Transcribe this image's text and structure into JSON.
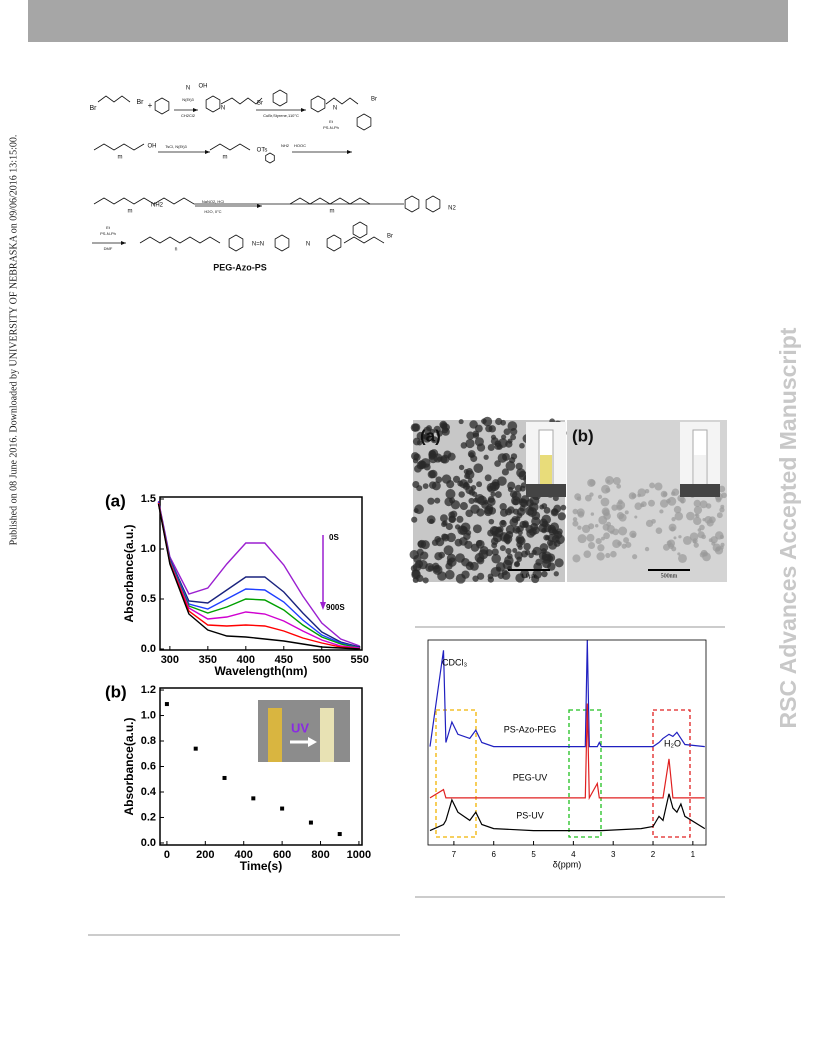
{
  "header": {
    "sidebar_left": "Published on 08 June 2016. Downloaded by UNIVERSITY OF NEBRASKA on 09/06/2016 13:15:00.",
    "sidebar_right": "RSC Advances Accepted Manuscript"
  },
  "scheme": {
    "labels": [
      "Br",
      "Br",
      "+",
      "N",
      "OH",
      "N(Et)3",
      "CH2Cl2",
      "N",
      "Br",
      "CuBr,Styrene,110°C",
      "N",
      "Br",
      "Et",
      "PS-N-Ph",
      "OH",
      "m",
      "TsCl, N(Et)3",
      "OTs",
      "m",
      "HOOC",
      "NH2",
      "NH2",
      "m",
      "NaNO2, HCl",
      "H2O, 0°C",
      "N2",
      "m",
      "Et",
      "PS-N-Ph",
      "DMF",
      "N=N",
      "N",
      "Br",
      "n",
      "PEG-Azo-PS"
    ]
  },
  "tem": {
    "panels": [
      "(a)",
      "(b)"
    ],
    "scale_bars": [
      "1.0μm",
      "500nm"
    ]
  },
  "chart_data": [
    {
      "type": "line",
      "panel": "(a)",
      "x_label": "Wavelength(nm)",
      "y_label": "Absorbance(a.u.)",
      "annotations": [
        "0S",
        "900S"
      ],
      "x": [
        285,
        300,
        325,
        350,
        375,
        400,
        425,
        450,
        475,
        500,
        525,
        550
      ],
      "series": [
        {
          "color": "#9b1fd0",
          "values": [
            1.48,
            0.92,
            0.55,
            0.61,
            0.85,
            1.06,
            1.06,
            0.84,
            0.53,
            0.26,
            0.1,
            0.03
          ]
        },
        {
          "color": "#1a237e",
          "values": [
            1.47,
            0.9,
            0.48,
            0.46,
            0.59,
            0.72,
            0.72,
            0.57,
            0.36,
            0.17,
            0.07,
            0.02
          ]
        },
        {
          "color": "#1f3fff",
          "values": [
            1.47,
            0.89,
            0.45,
            0.4,
            0.5,
            0.6,
            0.59,
            0.47,
            0.29,
            0.14,
            0.06,
            0.01
          ]
        },
        {
          "color": "#00a000",
          "values": [
            1.46,
            0.88,
            0.43,
            0.36,
            0.42,
            0.5,
            0.49,
            0.39,
            0.24,
            0.12,
            0.05,
            0.01
          ]
        },
        {
          "color": "#d000d0",
          "values": [
            1.46,
            0.87,
            0.41,
            0.3,
            0.32,
            0.37,
            0.35,
            0.28,
            0.18,
            0.09,
            0.03,
            0.01
          ]
        },
        {
          "color": "#ff0000",
          "values": [
            1.46,
            0.86,
            0.38,
            0.24,
            0.23,
            0.24,
            0.23,
            0.18,
            0.11,
            0.06,
            0.02,
            0.0
          ]
        },
        {
          "color": "#000000",
          "values": [
            1.45,
            0.85,
            0.35,
            0.19,
            0.13,
            0.12,
            0.1,
            0.08,
            0.05,
            0.02,
            0.01,
            0.0
          ]
        }
      ],
      "xlim": [
        287,
        553
      ],
      "ylim": [
        -0.01,
        1.52
      ],
      "xticks": [
        300,
        350,
        400,
        450,
        500,
        550
      ],
      "yticks": [
        {
          "value": 0,
          "label": "0.0"
        },
        {
          "value": 0.5,
          "label": "0.5"
        },
        {
          "value": 1,
          "label": "1.0"
        },
        {
          "value": 1.5,
          "label": "1.5"
        }
      ]
    },
    {
      "type": "scatter",
      "panel": "(b)",
      "x_label": "Time(s)",
      "y_label": "Absorbance(a.u.)",
      "inset_label": "UV",
      "x": [
        0,
        150,
        300,
        450,
        600,
        750,
        900
      ],
      "values": [
        1.09,
        0.74,
        0.51,
        0.35,
        0.27,
        0.16,
        0.07
      ],
      "color": "#000000",
      "xlim": [
        -36,
        1016
      ],
      "ylim": [
        -0.016,
        1.216
      ],
      "xticks": [
        0,
        200,
        400,
        600,
        800,
        1000
      ],
      "yticks": [
        {
          "value": 0,
          "label": "0.0"
        },
        {
          "value": 0.2,
          "label": "0.2"
        },
        {
          "value": 0.4,
          "label": "0.4"
        },
        {
          "value": 0.6,
          "label": "0.6"
        },
        {
          "value": 0.8,
          "label": "0.8"
        },
        {
          "value": 1,
          "label": "1.0"
        },
        {
          "value": 1.2,
          "label": "1.2"
        }
      ]
    },
    {
      "type": "spectrum",
      "x_label": "δ(ppm)",
      "annotations": [
        "CDCl₃",
        "H₂O"
      ],
      "x": [
        7.6,
        7.26,
        7.2,
        7.05,
        6.9,
        6.6,
        6.45,
        6.3,
        6.0,
        5.0,
        4.0,
        3.7,
        3.65,
        3.6,
        3.4,
        3.35,
        3.3,
        2.3,
        2.0,
        1.85,
        1.75,
        1.6,
        1.5,
        1.4,
        1.3,
        1.2,
        0.7
      ],
      "series": [
        {
          "name": "PS-Azo-PEG",
          "color": "#2020c0",
          "values": [
            48,
            95,
            50,
            60,
            54,
            52,
            56,
            50,
            48,
            48,
            48,
            48,
            100,
            48,
            48,
            50,
            48,
            48,
            48,
            50,
            52,
            54,
            53,
            55,
            52,
            49,
            48
          ]
        },
        {
          "name": "PEG-UV",
          "color": "#e02020",
          "values": [
            23,
            27,
            23,
            23,
            23,
            23,
            23,
            23,
            23,
            23,
            23,
            23,
            69,
            23,
            30,
            23,
            23,
            23,
            23,
            23,
            23,
            42,
            23,
            23,
            23,
            23,
            23
          ]
        },
        {
          "name": "PS-UV",
          "color": "#000000",
          "values": [
            7,
            10,
            12,
            22,
            16,
            12,
            16,
            10,
            8,
            7,
            7,
            7,
            7,
            7,
            7,
            7,
            7,
            8,
            9,
            14,
            12,
            25,
            18,
            16,
            20,
            14,
            8
          ]
        }
      ],
      "xlim": [
        7.65,
        0.67
      ],
      "ylim": [
        0,
        100
      ],
      "xticks": [
        7,
        6,
        5,
        4,
        3,
        2,
        1
      ]
    }
  ]
}
